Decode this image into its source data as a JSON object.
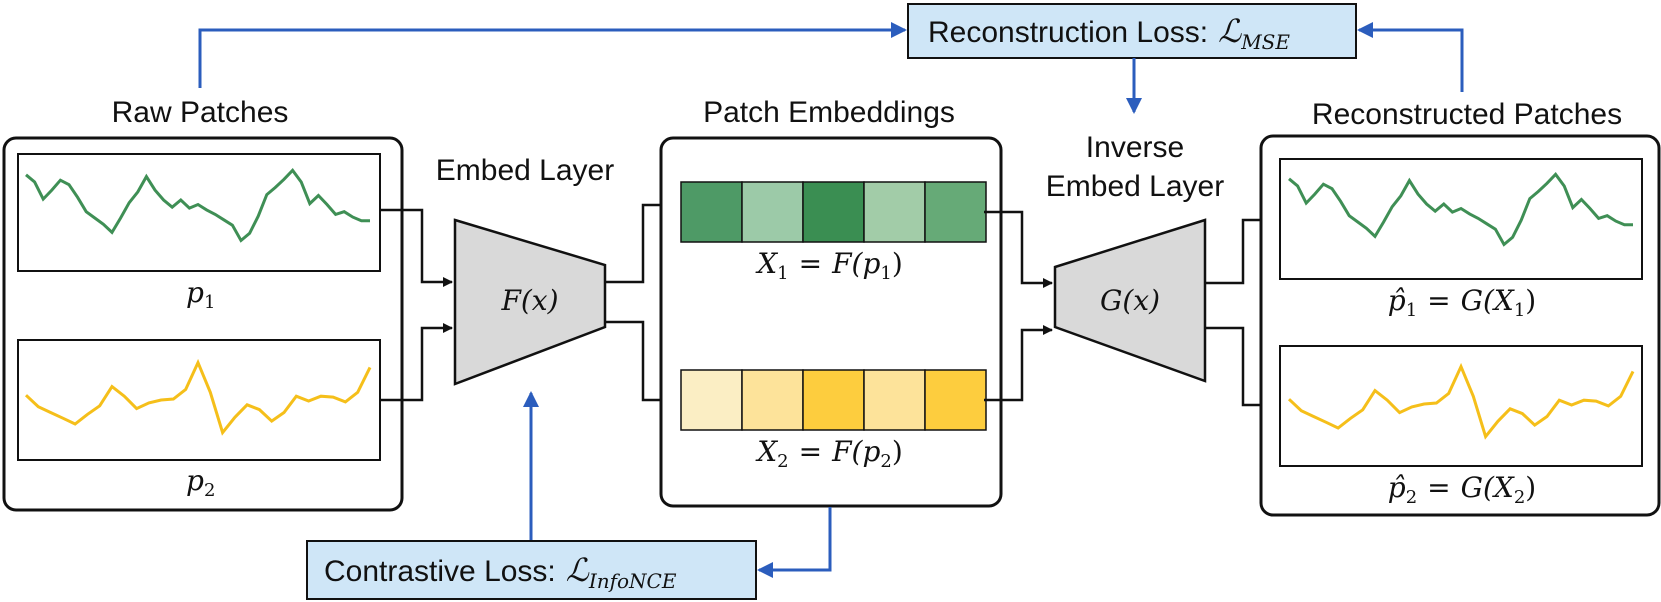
{
  "colors": {
    "panel_border": "#111111",
    "arrow_blue": "#2b5dbd",
    "loss_box_fill": "#cfe6f7",
    "trapezoid_fill": "#d9d9d9",
    "green_line": "#3f8f55",
    "yellow_line": "#f5bf1a",
    "green_cells": [
      "#4e9a66",
      "#9ccaa8",
      "#3a8e52",
      "#a2cca8",
      "#66aa77"
    ],
    "yellow_cells": [
      "#fbeec4",
      "#fde39a",
      "#fdcd3e",
      "#fde39a",
      "#fdcd3e"
    ]
  },
  "panels": {
    "raw": {
      "title": "Raw Patches",
      "patch1_label": "p",
      "patch1_sub": "1",
      "patch2_label": "p",
      "patch2_sub": "2"
    },
    "embeddings": {
      "title": "Patch Embeddings",
      "x1": {
        "var": "X",
        "sub": "1",
        "eq": "=",
        "fn": "F(p",
        "fn_sub": "1",
        "close": ")"
      },
      "x2": {
        "var": "X",
        "sub": "2",
        "eq": "=",
        "fn": "F(p",
        "fn_sub": "2",
        "close": ")"
      }
    },
    "reconstructed": {
      "title": "Reconstructed Patches",
      "r1": {
        "var": "p̂",
        "sub": "1",
        "eq": "=",
        "fn": "G(X",
        "fn_sub": "1",
        "close": ")"
      },
      "r2": {
        "var": "p̂",
        "sub": "2",
        "eq": "=",
        "fn": "G(X",
        "fn_sub": "2",
        "close": ")"
      }
    }
  },
  "layers": {
    "embed": {
      "title": "Embed Layer",
      "fn": "F(x)"
    },
    "inverse": {
      "title_line1": "Inverse",
      "title_line2": "Embed Layer",
      "fn": "G(x)"
    }
  },
  "losses": {
    "reconstruction": {
      "label": "Reconstruction Loss:",
      "symbol": "ℒ",
      "sub": "MSE"
    },
    "contrastive": {
      "label": "Contrastive Loss:",
      "symbol": "ℒ",
      "sub": "InfoNCE"
    }
  },
  "series": {
    "green": [
      0.88,
      0.8,
      0.61,
      0.71,
      0.82,
      0.77,
      0.63,
      0.47,
      0.4,
      0.33,
      0.24,
      0.4,
      0.57,
      0.69,
      0.86,
      0.71,
      0.6,
      0.52,
      0.6,
      0.51,
      0.55,
      0.49,
      0.44,
      0.38,
      0.32,
      0.15,
      0.23,
      0.42,
      0.66,
      0.74,
      0.83,
      0.93,
      0.8,
      0.56,
      0.65,
      0.55,
      0.44,
      0.47,
      0.41,
      0.37,
      0.37
    ],
    "yellow": [
      0.55,
      0.43,
      0.37,
      0.31,
      0.25,
      0.35,
      0.44,
      0.64,
      0.54,
      0.41,
      0.47,
      0.5,
      0.51,
      0.61,
      0.89,
      0.58,
      0.16,
      0.32,
      0.45,
      0.4,
      0.28,
      0.37,
      0.54,
      0.49,
      0.54,
      0.53,
      0.48,
      0.58,
      0.84
    ]
  }
}
